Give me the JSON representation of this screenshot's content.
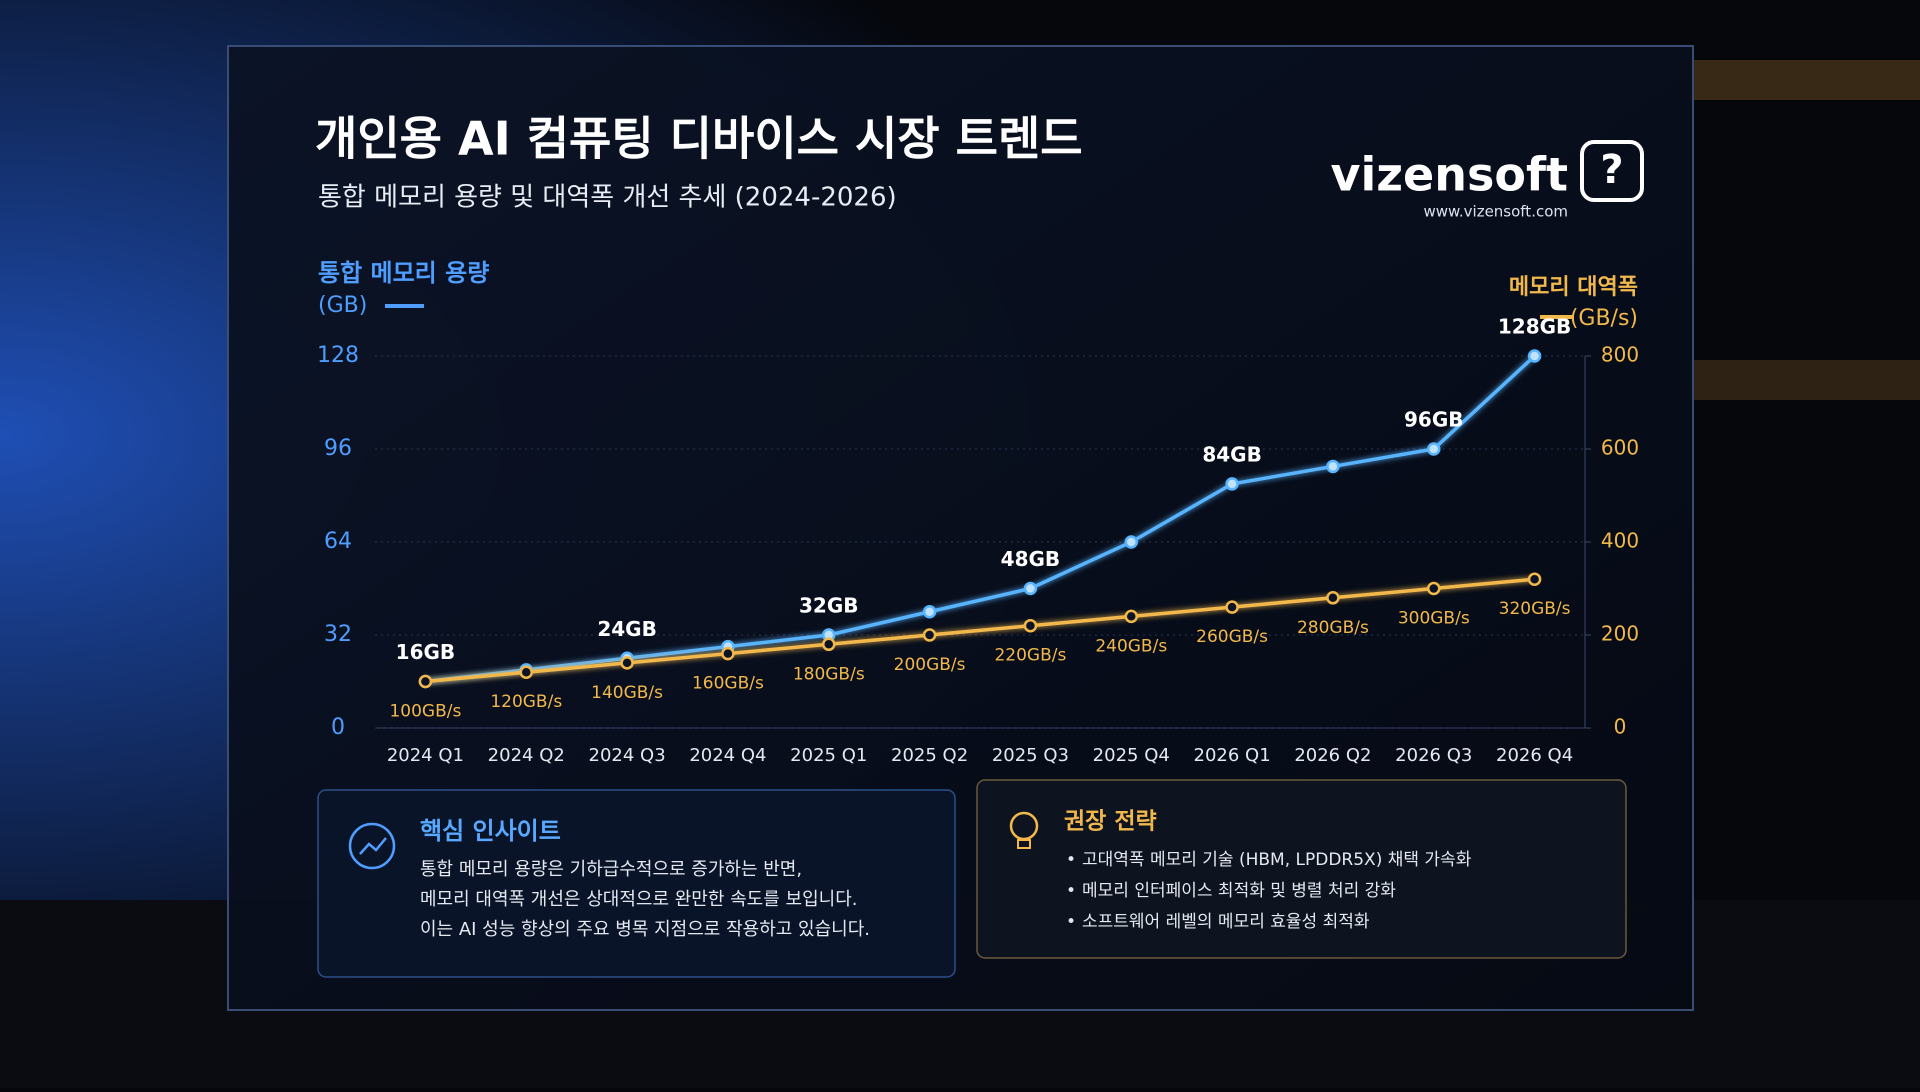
{
  "chart_data": {
    "type": "line",
    "title": "개인용 AI 컴퓨팅 디바이스 시장 트렌드",
    "subtitle": "통합 메모리 용량 및 대역폭 개선 추세 (2024-2026)",
    "categories": [
      "2024 Q1",
      "2024 Q2",
      "2024 Q3",
      "2024 Q4",
      "2025 Q1",
      "2025 Q2",
      "2025 Q3",
      "2025 Q4",
      "2026 Q1",
      "2026 Q2",
      "2026 Q3",
      "2026 Q4"
    ],
    "series": [
      {
        "name": "통합 메모리 용량",
        "unit": "(GB)",
        "color": "#58b4ff",
        "values": [
          16,
          20,
          24,
          28,
          32,
          40,
          48,
          64,
          84,
          90,
          96,
          128
        ],
        "value_labels": [
          "16GB",
          null,
          "24GB",
          null,
          "32GB",
          null,
          "48GB",
          null,
          "84GB",
          null,
          "96GB",
          "128GB"
        ]
      },
      {
        "name": "메모리 대역폭",
        "unit": "(GB/s)",
        "color": "#f2b84b",
        "axis": "y2",
        "values": [
          100,
          120,
          140,
          160,
          180,
          200,
          220,
          240,
          260,
          280,
          300,
          320
        ],
        "value_labels": [
          "100GB/s",
          "120GB/s",
          "140GB/s",
          "160GB/s",
          "180GB/s",
          "200GB/s",
          "220GB/s",
          "240GB/s",
          "260GB/s",
          "280GB/s",
          "300GB/s",
          "320GB/s"
        ]
      }
    ],
    "ylim": [
      0,
      128
    ],
    "yticks": [
      0,
      32,
      64,
      96,
      128
    ],
    "y2lim": [
      0,
      800
    ],
    "y2ticks": [
      0,
      200,
      400,
      600,
      800
    ],
    "grid": true
  },
  "brand": {
    "name": "vizensoft",
    "url": "www.vizensoft.com"
  },
  "insight": {
    "title": "핵심 인사이트",
    "lines": [
      "통합 메모리 용량은 기하급수적으로 증가하는 반면,",
      "메모리 대역폭 개선은 상대적으로 완만한 속도를 보입니다.",
      "이는 AI 성능 향상의 주요 병목 지점으로 작용하고 있습니다."
    ]
  },
  "strategy": {
    "title": "권장 전략",
    "items": [
      "고대역폭 메모리 기술 (HBM, LPDDR5X) 채택 가속화",
      "메모리 인터페이스 최적화 및 병렬 처리 강화",
      "소프트웨어 레벨의 메모리 효율성 최적화"
    ]
  }
}
